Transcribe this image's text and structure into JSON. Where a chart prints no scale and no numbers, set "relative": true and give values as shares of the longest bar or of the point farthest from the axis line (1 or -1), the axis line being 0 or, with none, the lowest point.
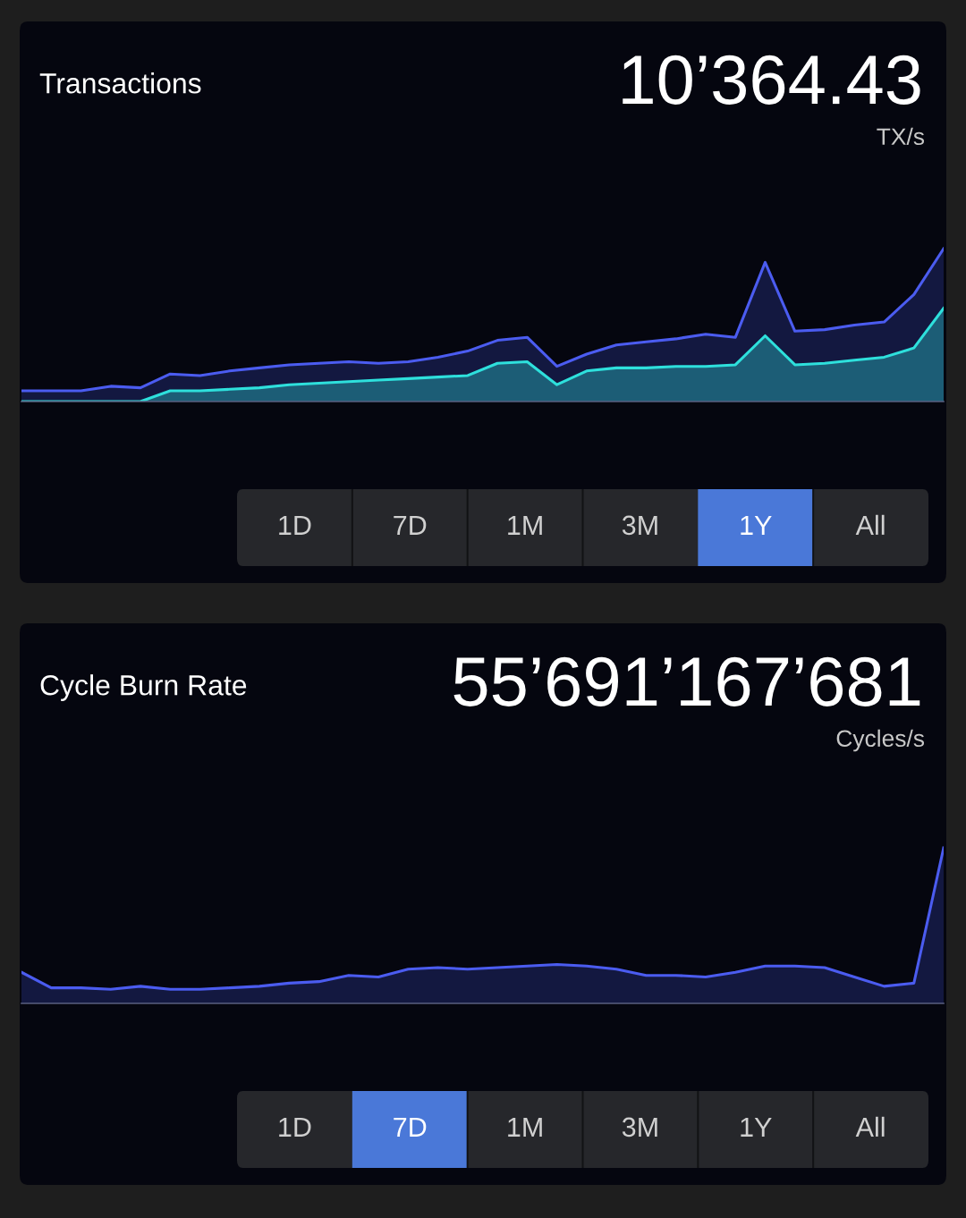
{
  "chart_data": [
    {
      "type": "area",
      "title": "Transactions",
      "relative": true,
      "categories": [
        null,
        null,
        null,
        null,
        null,
        null,
        null,
        null,
        null,
        null,
        null,
        null,
        null,
        null,
        null,
        null,
        null,
        null,
        null,
        null,
        null,
        null,
        null,
        null,
        null,
        null,
        null,
        null,
        null,
        null,
        null,
        null
      ],
      "series": [
        {
          "color": "#4b5cf0",
          "values": [
            0.07,
            0.07,
            0.07,
            0.1,
            0.09,
            0.18,
            0.17,
            0.2,
            0.22,
            0.24,
            0.25,
            0.26,
            0.25,
            0.26,
            0.29,
            0.33,
            0.4,
            0.42,
            0.23,
            0.31,
            0.37,
            0.39,
            0.41,
            0.44,
            0.42,
            0.91,
            0.46,
            0.47,
            0.5,
            0.52,
            0.7,
            1.0
          ]
        },
        {
          "color": "#2ee0dc",
          "values": [
            0,
            0,
            0,
            0,
            0,
            0.07,
            0.07,
            0.08,
            0.09,
            0.11,
            0.12,
            0.13,
            0.14,
            0.15,
            0.16,
            0.17,
            0.25,
            0.26,
            0.11,
            0.2,
            0.22,
            0.22,
            0.23,
            0.23,
            0.24,
            0.43,
            0.24,
            0.25,
            0.27,
            0.29,
            0.35,
            0.61
          ]
        }
      ],
      "annotations": [
        "10’364.43",
        "TX/s",
        "1D",
        "7D",
        "1M",
        "3M",
        "1Y",
        "All"
      ]
    },
    {
      "type": "area",
      "title": "Cycle Burn Rate",
      "relative": true,
      "categories": [
        null,
        null,
        null,
        null,
        null,
        null,
        null,
        null,
        null,
        null,
        null,
        null,
        null,
        null,
        null,
        null,
        null,
        null,
        null,
        null,
        null,
        null,
        null,
        null,
        null,
        null,
        null,
        null,
        null,
        null,
        null,
        null
      ],
      "series": [
        {
          "color": "#4b5cf0",
          "values": [
            0.2,
            0.1,
            0.1,
            0.09,
            0.11,
            0.09,
            0.09,
            0.1,
            0.11,
            0.13,
            0.14,
            0.18,
            0.17,
            0.22,
            0.23,
            0.22,
            0.23,
            0.24,
            0.25,
            0.24,
            0.22,
            0.18,
            0.18,
            0.17,
            0.2,
            0.24,
            0.24,
            0.23,
            0.17,
            0.11,
            0.13,
            1.0
          ]
        }
      ],
      "annotations": [
        "55’691’167’681",
        "Cycles/s",
        "1D",
        "7D",
        "1M",
        "3M",
        "1Y",
        "All"
      ]
    }
  ]
}
